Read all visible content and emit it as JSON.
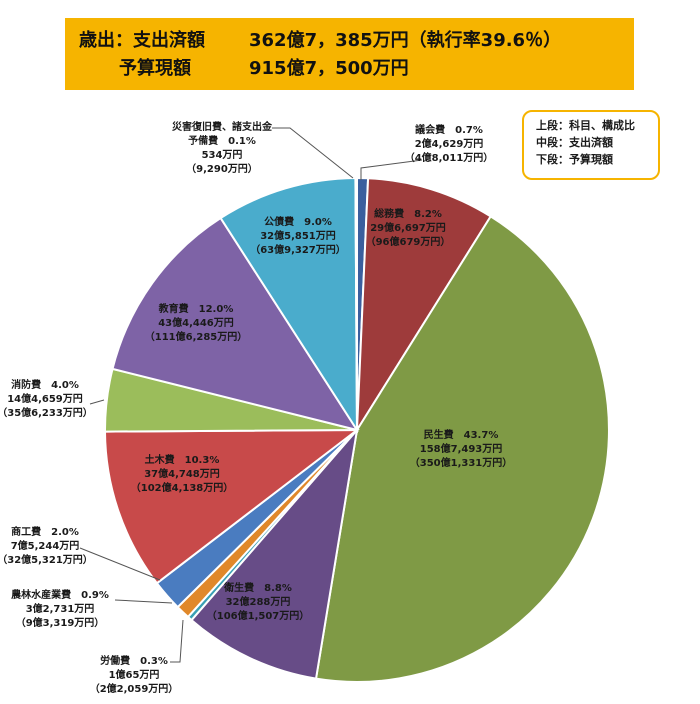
{
  "header": {
    "row1_label": "歳出：支出済額",
    "row1_value": "362億7，385万円（執行率39.6％）",
    "row2_label": "予算現額",
    "row2_value": "915億7，500万円"
  },
  "legend": {
    "line1": "上段：科目、構成比",
    "line2": "中段：支出済額",
    "line3": "下段：予算現額"
  },
  "chart_data": {
    "type": "pie",
    "title": "",
    "start": "12 o'clock",
    "direction": "clockwise",
    "slices": [
      {
        "name": "議会費",
        "percent": 0.7,
        "spent": "2億4,629万円",
        "budget": "（4億8,011万円）",
        "color": "#3b5f9e"
      },
      {
        "name": "総務費",
        "percent": 8.2,
        "spent": "29億6,697万円",
        "budget": "（96億679万円）",
        "color": "#9e3b3b"
      },
      {
        "name": "民生費",
        "percent": 43.7,
        "spent": "158億7,493万円",
        "budget": "（350億1,331万円）",
        "color": "#7f9a45"
      },
      {
        "name": "衛生費",
        "percent": 8.8,
        "spent": "32億288万円",
        "budget": "（106億1,507万円）",
        "color": "#674c87"
      },
      {
        "name": "労働費",
        "percent": 0.3,
        "spent": "1億65万円",
        "budget": "（2億2,059万円）",
        "color": "#3aa0b4"
      },
      {
        "name": "農林水産業費",
        "percent": 0.9,
        "spent": "3億2,731万円",
        "budget": "（9億3,319万円）",
        "color": "#e0882a"
      },
      {
        "name": "商工費",
        "percent": 2.0,
        "spent": "7億5,244万円",
        "budget": "（32億5,321万円）",
        "color": "#4a7cc0"
      },
      {
        "name": "土木費",
        "percent": 10.3,
        "spent": "37億4,748万円",
        "budget": "（102億4,138万円）",
        "color": "#c84a4a"
      },
      {
        "name": "消防費",
        "percent": 4.0,
        "spent": "14億4,659万円",
        "budget": "（35億6,233万円）",
        "color": "#9bbd5b"
      },
      {
        "name": "教育費",
        "percent": 12.0,
        "spent": "43億4,446万円",
        "budget": "（111億6,285万円）",
        "color": "#7e63a6"
      },
      {
        "name": "公債費",
        "percent": 9.0,
        "spent": "32億5,851万円",
        "budget": "（63億9,327万円）",
        "color": "#4aaccc"
      },
      {
        "name": "災害復旧費、諸支出金\n予備費",
        "percent": 0.1,
        "spent": "534万円",
        "budget": "（9,290万円）",
        "color": "#2f4f7a"
      }
    ]
  }
}
